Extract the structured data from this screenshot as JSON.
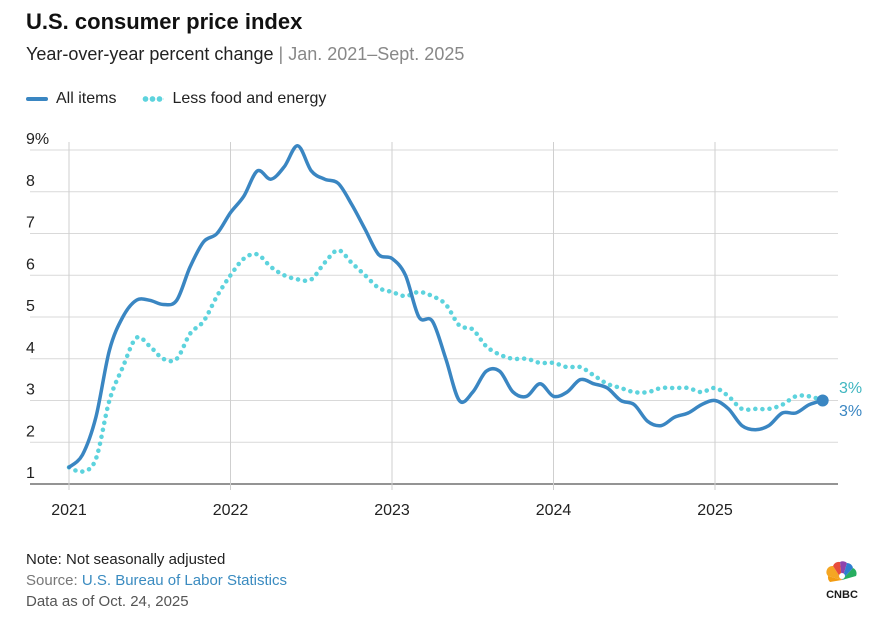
{
  "title": "U.S. consumer price index",
  "subtitle_main": "Year-over-year percent change",
  "subtitle_sep": "|",
  "subtitle_range": "Jan. 2021–Sept. 2025",
  "legend": [
    {
      "label": "All items",
      "color": "#3a86c2",
      "style": "solid"
    },
    {
      "label": "Less food and energy",
      "color": "#5dd3dd",
      "style": "dotted"
    }
  ],
  "notes": {
    "note": "Note: Not seasonally adjusted",
    "source_label": "Source:",
    "source": "U.S. Bureau of Labor Statistics",
    "as_of": "Data as of Oct. 24, 2025"
  },
  "logo_text": "CNBC",
  "chart_data": {
    "type": "line",
    "x_start": "2021-01",
    "x_end": "2025-09",
    "ylim": [
      1,
      9
    ],
    "y_ticks": [
      "1",
      "2",
      "3",
      "4",
      "5",
      "6",
      "7",
      "8",
      "9%"
    ],
    "x_ticks": [
      "2021",
      "2022",
      "2023",
      "2024",
      "2025"
    ],
    "grid": true,
    "end_labels": [
      "3%",
      "3%"
    ],
    "series": [
      {
        "name": "All items",
        "color": "#3a86c2",
        "style": "solid",
        "values": [
          1.4,
          1.7,
          2.6,
          4.2,
          5.0,
          5.4,
          5.4,
          5.3,
          5.4,
          6.2,
          6.8,
          7.0,
          7.5,
          7.9,
          8.5,
          8.3,
          8.6,
          9.1,
          8.5,
          8.3,
          8.2,
          7.7,
          7.1,
          6.5,
          6.4,
          6.0,
          5.0,
          4.9,
          4.0,
          3.0,
          3.2,
          3.7,
          3.7,
          3.2,
          3.1,
          3.4,
          3.1,
          3.2,
          3.5,
          3.4,
          3.3,
          3.0,
          2.9,
          2.5,
          2.4,
          2.6,
          2.7,
          2.9,
          3.0,
          2.8,
          2.4,
          2.3,
          2.4,
          2.7,
          2.7,
          2.9,
          3.0
        ]
      },
      {
        "name": "Less food and energy",
        "color": "#5dd3dd",
        "style": "dotted",
        "values": [
          1.4,
          1.3,
          1.6,
          3.0,
          3.8,
          4.5,
          4.3,
          4.0,
          4.0,
          4.6,
          4.9,
          5.5,
          6.0,
          6.4,
          6.5,
          6.2,
          6.0,
          5.9,
          5.9,
          6.3,
          6.6,
          6.3,
          6.0,
          5.7,
          5.6,
          5.5,
          5.6,
          5.5,
          5.3,
          4.8,
          4.7,
          4.3,
          4.1,
          4.0,
          4.0,
          3.9,
          3.9,
          3.8,
          3.8,
          3.6,
          3.4,
          3.3,
          3.2,
          3.2,
          3.3,
          3.3,
          3.3,
          3.2,
          3.3,
          3.1,
          2.8,
          2.8,
          2.8,
          2.9,
          3.1,
          3.1,
          3.0
        ]
      }
    ]
  }
}
